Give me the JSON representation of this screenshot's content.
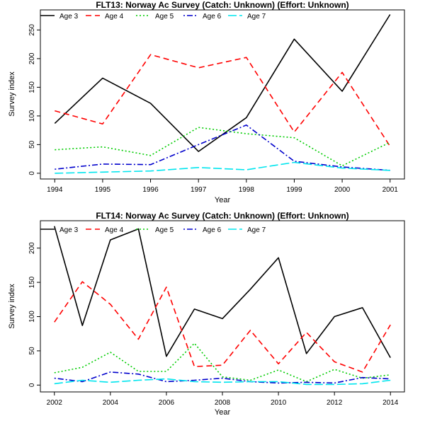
{
  "chart_data": [
    {
      "type": "line",
      "title": "FLT13: Norway Ac Survey (Catch: Unknown) (Effort: Unknown)",
      "xlabel": "Year",
      "ylabel": "Survey index",
      "x": [
        1994,
        1995,
        1996,
        1997,
        1998,
        1999,
        2000,
        2001
      ],
      "xticks": [
        "1994",
        "1995",
        "1996",
        "1997",
        "1998",
        "1999",
        "2000",
        "2001"
      ],
      "xlim": [
        1993.7,
        2001.3
      ],
      "yticks": [
        "0",
        "50",
        "100",
        "150",
        "200",
        "250"
      ],
      "ylim": [
        -10,
        285
      ],
      "grid": false,
      "legend": "top",
      "series": [
        {
          "name": "Age 3",
          "color": "#000000",
          "dash": "solid",
          "values": [
            87,
            166,
            122,
            38,
            97,
            234,
            143,
            277
          ]
        },
        {
          "name": "Age 4",
          "color": "#ff0000",
          "dash": "dashed",
          "values": [
            109,
            86,
            207,
            184,
            202,
            72,
            176,
            47
          ]
        },
        {
          "name": "Age 5",
          "color": "#00cc00",
          "dash": "dotted",
          "values": [
            41,
            46,
            31,
            80,
            69,
            62,
            13,
            54
          ]
        },
        {
          "name": "Age 6",
          "color": "#0000cc",
          "dash": "dotdash",
          "values": [
            7,
            16,
            15,
            50,
            84,
            21,
            11,
            5
          ]
        },
        {
          "name": "Age 7",
          "color": "#00e5ee",
          "dash": "longdash",
          "values": [
            0,
            2,
            4,
            10,
            6,
            19,
            9,
            5
          ]
        }
      ]
    },
    {
      "type": "line",
      "title": "FLT14: Norway Ac Survey (Catch: Unknown) (Effort: Unknown)",
      "xlabel": "Year",
      "ylabel": "Survey index",
      "x": [
        2002,
        2003,
        2004,
        2005,
        2006,
        2007,
        2008,
        2009,
        2010,
        2011,
        2012,
        2013,
        2014
      ],
      "xticks": [
        "2002",
        "2004",
        "2006",
        "2008",
        "2010",
        "2012",
        "2014"
      ],
      "xlim": [
        2001.5,
        2014.5
      ],
      "yticks": [
        "0",
        "50",
        "100",
        "150",
        "200"
      ],
      "ylim": [
        -10,
        240
      ],
      "grid": false,
      "legend": "top",
      "series": [
        {
          "name": "Age 3",
          "color": "#000000",
          "dash": "solid",
          "values": [
            232,
            87,
            212,
            228,
            42,
            111,
            97,
            140,
            186,
            46,
            100,
            113,
            40
          ]
        },
        {
          "name": "Age 4",
          "color": "#ff0000",
          "dash": "dashed",
          "values": [
            92,
            151,
            118,
            67,
            143,
            27,
            29,
            80,
            31,
            77,
            34,
            19,
            88
          ]
        },
        {
          "name": "Age 5",
          "color": "#00cc00",
          "dash": "dotted",
          "values": [
            18,
            26,
            48,
            20,
            20,
            61,
            12,
            7,
            22,
            5,
            23,
            10,
            15
          ]
        },
        {
          "name": "Age 6",
          "color": "#0000cc",
          "dash": "dotdash",
          "values": [
            10,
            5,
            19,
            16,
            5,
            7,
            10,
            5,
            3,
            4,
            3,
            11,
            9
          ]
        },
        {
          "name": "Age 7",
          "color": "#00e5ee",
          "dash": "longdash",
          "values": [
            2,
            7,
            4,
            7,
            9,
            5,
            4,
            5,
            5,
            1,
            1,
            2,
            7
          ]
        }
      ]
    }
  ]
}
